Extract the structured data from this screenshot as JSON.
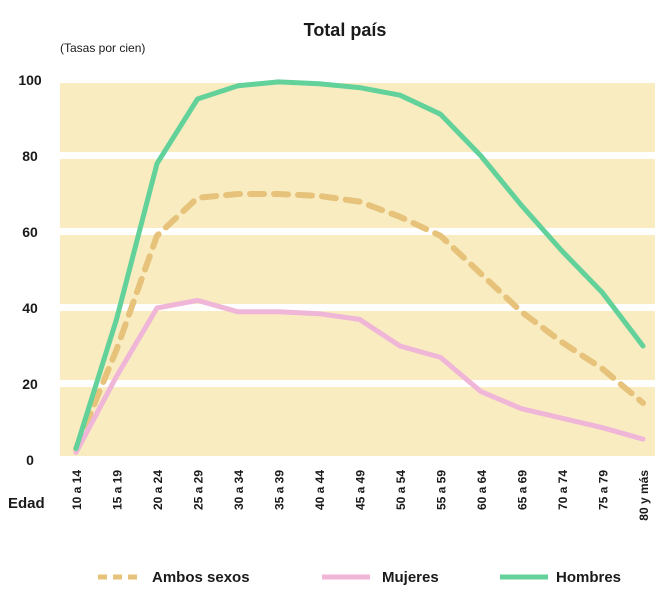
{
  "chart_data": {
    "type": "line",
    "title": "Total país",
    "subtitle": "(Tasas por cien)",
    "xlabel": "Edad",
    "ylabel": "",
    "ylim": [
      0,
      100
    ],
    "yticks": [
      "0",
      "20",
      "40",
      "60",
      "80",
      "100"
    ],
    "categories": [
      "10 a 14",
      "15 a 19",
      "20 a 24",
      "25 a 29",
      "30 a 34",
      "35 a 39",
      "40 a 44",
      "45 a 49",
      "50 a 54",
      "55 a 59",
      "60 a 64",
      "65 a 69",
      "70 a 74",
      "75 a 79",
      "80 y más"
    ],
    "series": [
      {
        "name": "Ambos sexos",
        "color": "#e6c27a",
        "style": "dashed",
        "values": [
          3,
          29,
          59,
          69,
          70,
          70,
          69.5,
          68,
          64,
          59,
          49,
          39,
          31,
          24,
          15
        ]
      },
      {
        "name": "Mujeres",
        "color": "#f0b6d8",
        "style": "solid",
        "values": [
          2,
          22,
          40,
          42,
          39,
          39,
          38.5,
          37,
          30,
          27,
          18,
          13.5,
          11,
          8.5,
          5.5
        ]
      },
      {
        "name": "Hombres",
        "color": "#62d19a",
        "style": "solid",
        "values": [
          3,
          37,
          78,
          95,
          98.5,
          99.5,
          99,
          98,
          96,
          91,
          80,
          67,
          55,
          44,
          30
        ]
      }
    ],
    "background_bands_color": "#f8ecc0",
    "grid": false,
    "legend_position": "bottom"
  }
}
